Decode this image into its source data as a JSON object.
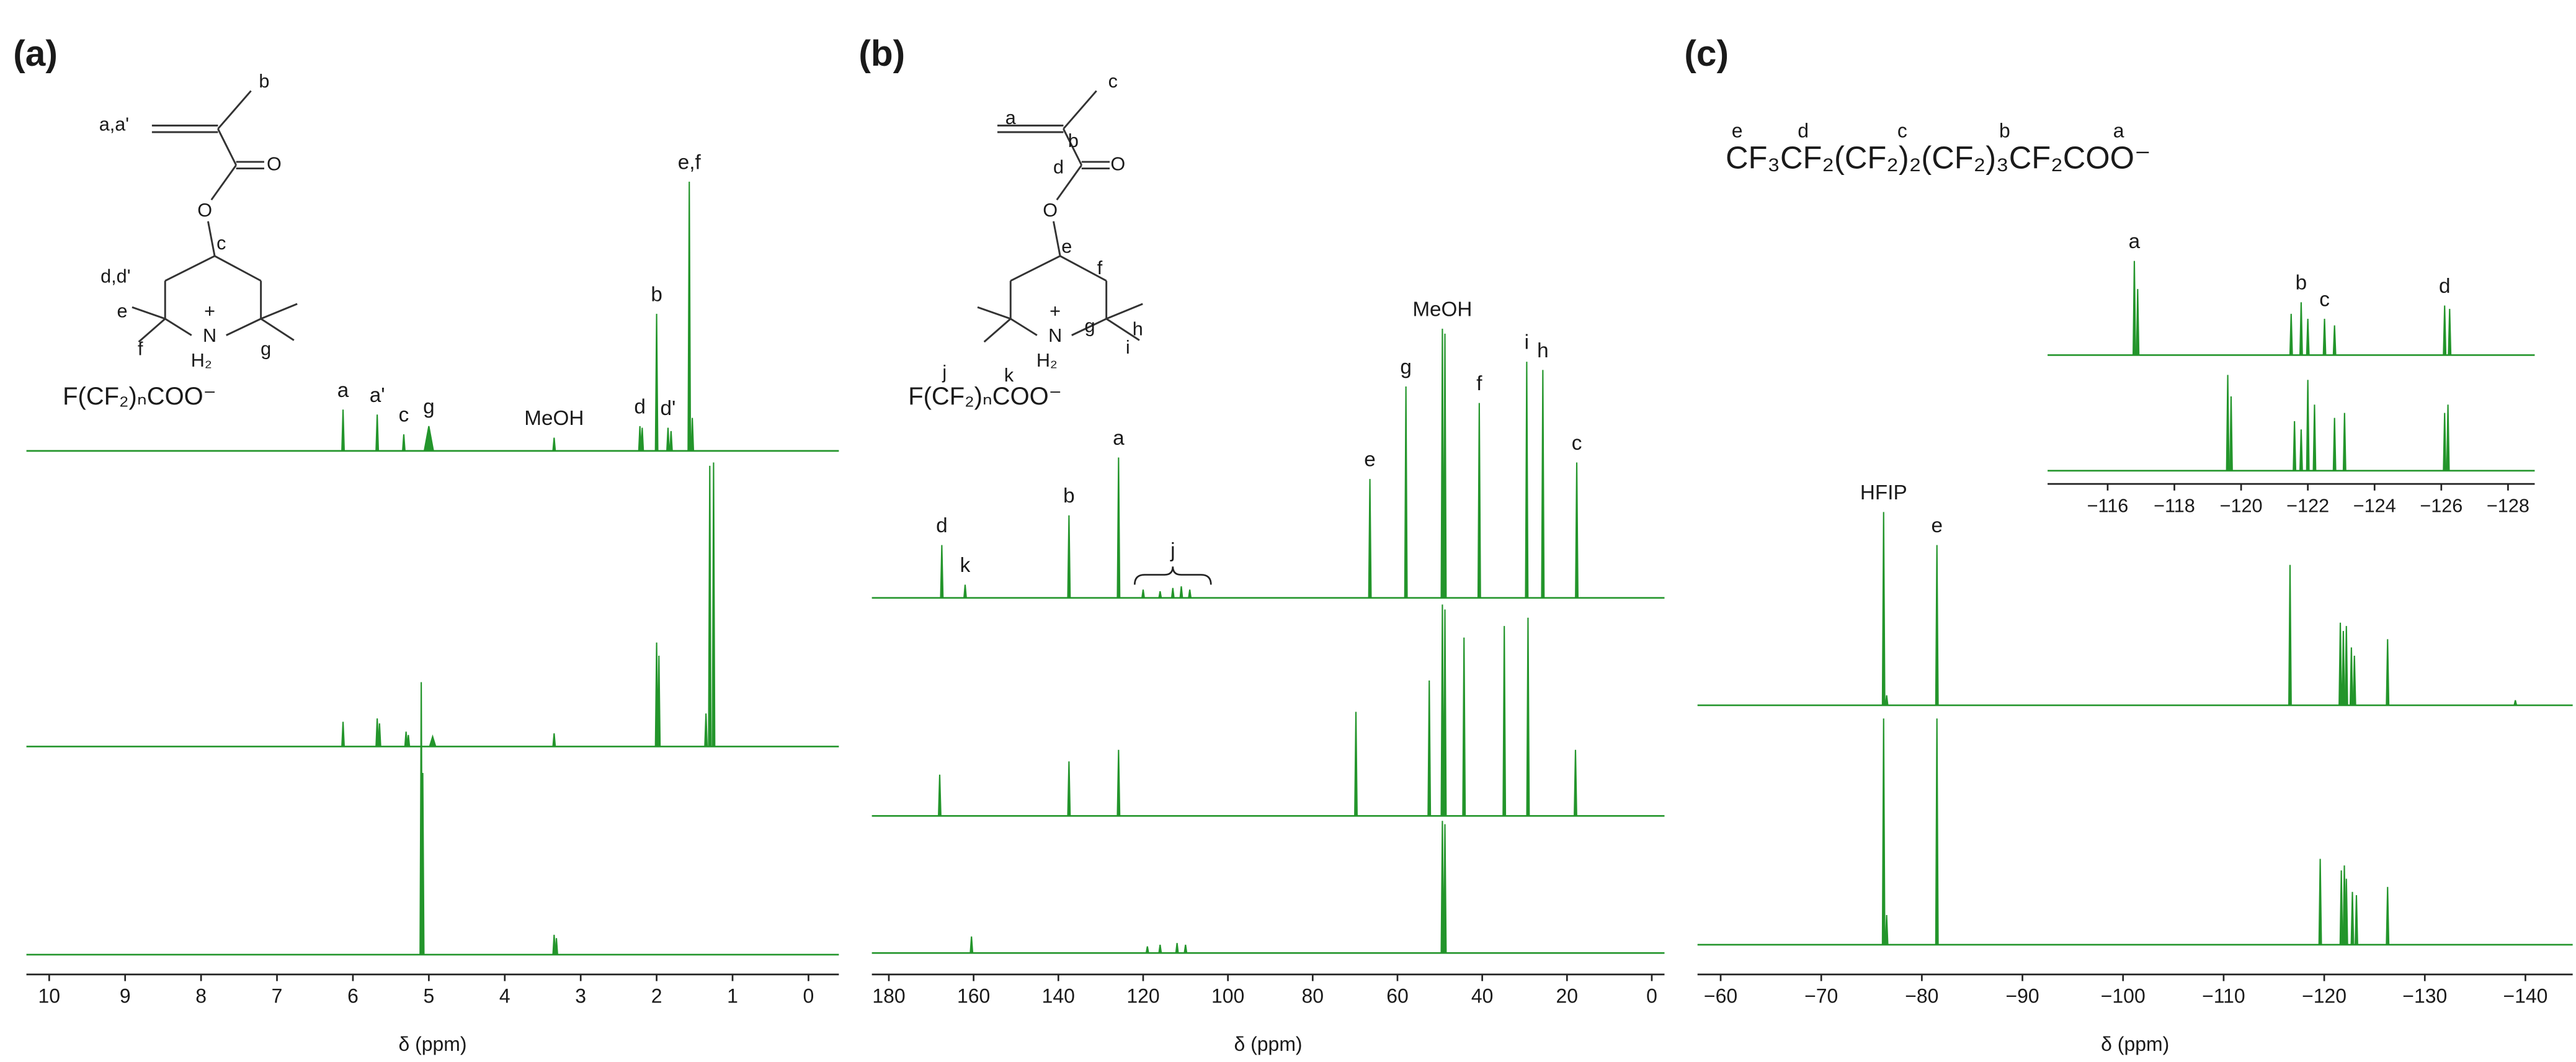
{
  "chart_data": [
    {
      "type": "spectrum",
      "panel_label": "(a)",
      "xlabel": "δ (ppm)",
      "color": "#23952b",
      "xlim": [
        10.3,
        -0.4
      ],
      "xticks": [
        10,
        9,
        8,
        7,
        6,
        5,
        4,
        3,
        2,
        1,
        0
      ],
      "structure_labels": [
        "a,a'",
        "b",
        "O",
        "O",
        "c",
        "d,d'",
        "e",
        "f",
        "+",
        "N",
        "H₂",
        "g"
      ],
      "formula": "F(CF₂)ₙCOO⁻",
      "traces": [
        {
          "peaks": [
            {
              "x": 6.13,
              "height": 25,
              "label": "a"
            },
            {
              "x": 5.68,
              "height": 22,
              "label": "a'"
            },
            {
              "x": 5.33,
              "height": 10,
              "label": "c"
            },
            {
              "x": 5.0,
              "height": 15,
              "width": 0.12,
              "label": "g"
            },
            {
              "x": 3.35,
              "height": 8,
              "label": "MeOH"
            },
            {
              "x": 2.22,
              "height": 15,
              "label": "d"
            },
            {
              "x": 2.19,
              "height": 14
            },
            {
              "x": 2.0,
              "height": 83,
              "label": "b"
            },
            {
              "x": 1.85,
              "height": 14,
              "label": "d'"
            },
            {
              "x": 1.81,
              "height": 12
            },
            {
              "x": 1.57,
              "height": 163,
              "label": "e,f"
            },
            {
              "x": 1.53,
              "height": 20
            }
          ]
        },
        {
          "peaks": [
            {
              "x": 6.13,
              "height": 15
            },
            {
              "x": 5.68,
              "height": 17
            },
            {
              "x": 5.65,
              "height": 14
            },
            {
              "x": 5.3,
              "height": 9
            },
            {
              "x": 5.27,
              "height": 7
            },
            {
              "x": 4.95,
              "height": 6,
              "width": 0.08
            },
            {
              "x": 3.35,
              "height": 8
            },
            {
              "x": 2.0,
              "height": 63
            },
            {
              "x": 1.97,
              "height": 55
            },
            {
              "x": 1.35,
              "height": 20
            },
            {
              "x": 1.3,
              "height": 170
            },
            {
              "x": 1.25,
              "height": 172
            }
          ]
        },
        {
          "peaks": [
            {
              "x": 5.1,
              "height": 165
            },
            {
              "x": 5.08,
              "height": 110
            },
            {
              "x": 3.35,
              "height": 12
            },
            {
              "x": 3.32,
              "height": 10
            }
          ]
        }
      ]
    },
    {
      "type": "spectrum",
      "panel_label": "(b)",
      "xlabel": "δ (ppm)",
      "color": "#23952b",
      "xlim": [
        184,
        -3
      ],
      "xticks": [
        180,
        160,
        140,
        120,
        100,
        80,
        60,
        40,
        20,
        0
      ],
      "structure_labels": [
        "a",
        "b",
        "c",
        "d",
        "O",
        "O",
        "e",
        "f",
        "g",
        "h",
        "i",
        "+",
        "N",
        "H₂",
        "j",
        "k"
      ],
      "formula": "F(CF₂)ₙCOO⁻",
      "brace": {
        "label": "j",
        "from": 122,
        "to": 104
      },
      "traces": [
        {
          "peaks": [
            {
              "x": 167.5,
              "height": 32,
              "label": "d"
            },
            {
              "x": 162,
              "height": 8,
              "label": "k"
            },
            {
              "x": 137.5,
              "height": 50,
              "label": "b"
            },
            {
              "x": 125.8,
              "height": 85,
              "label": "a"
            },
            {
              "x": 120,
              "height": 5
            },
            {
              "x": 116,
              "height": 4
            },
            {
              "x": 113,
              "height": 6
            },
            {
              "x": 111,
              "height": 7
            },
            {
              "x": 109,
              "height": 5
            },
            {
              "x": 66.5,
              "height": 72,
              "label": "e"
            },
            {
              "x": 58,
              "height": 128,
              "label": "g"
            },
            {
              "x": 49.4,
              "height": 163,
              "label": "MeOH"
            },
            {
              "x": 48.8,
              "height": 160
            },
            {
              "x": 40.7,
              "height": 118,
              "label": "f"
            },
            {
              "x": 29.5,
              "height": 143,
              "label": "i"
            },
            {
              "x": 25.7,
              "height": 138,
              "label": "h"
            },
            {
              "x": 17.7,
              "height": 82,
              "label": "c"
            }
          ]
        },
        {
          "peaks": [
            {
              "x": 168,
              "height": 25
            },
            {
              "x": 137.5,
              "height": 33
            },
            {
              "x": 125.8,
              "height": 40
            },
            {
              "x": 69.8,
              "height": 63
            },
            {
              "x": 52.5,
              "height": 82
            },
            {
              "x": 49.4,
              "height": 128
            },
            {
              "x": 48.8,
              "height": 125
            },
            {
              "x": 44.3,
              "height": 108
            },
            {
              "x": 34.8,
              "height": 115
            },
            {
              "x": 29.2,
              "height": 120
            },
            {
              "x": 18.0,
              "height": 40
            }
          ]
        },
        {
          "peaks": [
            {
              "x": 160.5,
              "height": 10
            },
            {
              "x": 119,
              "height": 4
            },
            {
              "x": 116,
              "height": 5
            },
            {
              "x": 112,
              "height": 6
            },
            {
              "x": 110,
              "height": 5
            },
            {
              "x": 49.4,
              "height": 80
            },
            {
              "x": 48.8,
              "height": 78
            }
          ]
        }
      ]
    },
    {
      "type": "spectrum",
      "panel_label": "(c)",
      "xlabel": "δ (ppm)",
      "color": "#23952b",
      "xlim": [
        -57.7,
        -144.7
      ],
      "xticks": [
        {
          "value": -60,
          "label": "−60"
        },
        {
          "value": -70,
          "label": "−70"
        },
        {
          "value": -80,
          "label": "−80"
        },
        {
          "value": -90,
          "label": "−90"
        },
        {
          "value": -100,
          "label": "−100"
        },
        {
          "value": -110,
          "label": "−110"
        },
        {
          "value": -120,
          "label": "−120"
        },
        {
          "value": -130,
          "label": "−130"
        },
        {
          "value": -140,
          "label": "−140"
        }
      ],
      "formula": "CF₃CF₂(CF₂)₂(CF₂)₃CF₂COO⁻",
      "formula_labels": [
        "e",
        "d",
        "c",
        "b",
        "a"
      ],
      "traces": [
        {
          "peaks": [
            {
              "x": -76.2,
              "height": 117,
              "label": "HFIP"
            },
            {
              "x": -76.5,
              "height": 6
            },
            {
              "x": -81.5,
              "height": 97,
              "label": "e"
            },
            {
              "x": -116.6,
              "height": 85
            },
            {
              "x": -121.6,
              "height": 50
            },
            {
              "x": -121.9,
              "height": 45
            },
            {
              "x": -122.2,
              "height": 48
            },
            {
              "x": -122.7,
              "height": 35
            },
            {
              "x": -123,
              "height": 30
            },
            {
              "x": -126.3,
              "height": 40
            },
            {
              "x": -139,
              "height": 3
            }
          ]
        },
        {
          "peaks": [
            {
              "x": -76.2,
              "height": 137
            },
            {
              "x": -76.5,
              "height": 18
            },
            {
              "x": -81.5,
              "height": 137
            },
            {
              "x": -119.6,
              "height": 52
            },
            {
              "x": -121.7,
              "height": 45
            },
            {
              "x": -122,
              "height": 48
            },
            {
              "x": -122.2,
              "height": 40
            },
            {
              "x": -122.8,
              "height": 32
            },
            {
              "x": -123.2,
              "height": 30
            },
            {
              "x": -126.3,
              "height": 35
            }
          ]
        }
      ],
      "inset": {
        "xlim": [
          -114.2,
          -128.8
        ],
        "xticks": [
          {
            "value": -116,
            "label": "−116"
          },
          {
            "value": -118,
            "label": "−118"
          },
          {
            "value": -120,
            "label": "−120"
          },
          {
            "value": -122,
            "label": "−122"
          },
          {
            "value": -124,
            "label": "−124"
          },
          {
            "value": -126,
            "label": "−126"
          },
          {
            "value": -128,
            "label": "−128"
          }
        ],
        "traces": [
          {
            "peaks": [
              {
                "x": -116.8,
                "height": 57,
                "label": "a"
              },
              {
                "x": -116.9,
                "height": 40
              },
              {
                "x": -121.5,
                "height": 25
              },
              {
                "x": -121.8,
                "height": 32,
                "label": "b"
              },
              {
                "x": -122.0,
                "height": 22
              },
              {
                "x": -122.5,
                "height": 22,
                "label": "c"
              },
              {
                "x": -122.8,
                "height": 18
              },
              {
                "x": -126.1,
                "height": 30,
                "label": "d"
              },
              {
                "x": -126.25,
                "height": 28
              }
            ]
          },
          {
            "peaks": [
              {
                "x": -119.6,
                "height": 58
              },
              {
                "x": -119.7,
                "height": 45
              },
              {
                "x": -121.6,
                "height": 30
              },
              {
                "x": -121.8,
                "height": 25
              },
              {
                "x": -122.0,
                "height": 55
              },
              {
                "x": -122.2,
                "height": 40
              },
              {
                "x": -122.8,
                "height": 32
              },
              {
                "x": -123.1,
                "height": 35
              },
              {
                "x": -126.1,
                "height": 35
              },
              {
                "x": -126.2,
                "height": 40
              }
            ]
          }
        ]
      }
    }
  ]
}
